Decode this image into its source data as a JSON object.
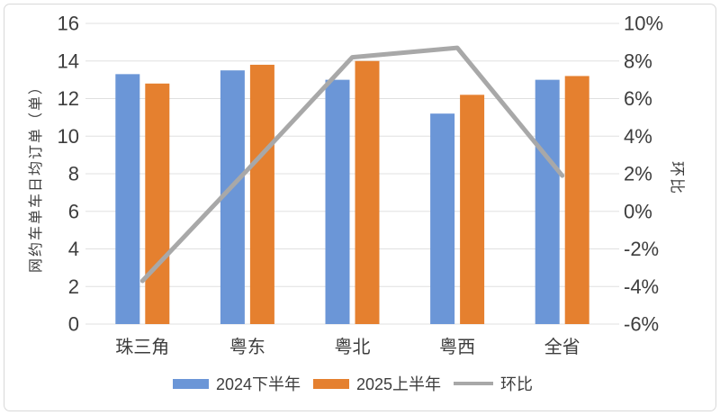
{
  "frame": {
    "background_color": "#ffffff",
    "border_color": "#d9d9d9"
  },
  "colors": {
    "bar_2024": "#6b96d7",
    "bar_2025": "#e5802f",
    "line_huanbi": "#a8a8a8",
    "gridline": "#e0e0e0",
    "text": "#3d3d3d"
  },
  "chart_data": {
    "type": "bar",
    "subtype": "grouped-bar-with-line-combo",
    "categories": [
      "珠三角",
      "粤东",
      "粤北",
      "粤西",
      "全省"
    ],
    "series": [
      {
        "name": "2024下半年",
        "type": "bar",
        "axis": "left",
        "color": "#6b96d7",
        "values": [
          13.3,
          13.5,
          13.0,
          11.2,
          13.0
        ]
      },
      {
        "name": "2025上半年",
        "type": "bar",
        "axis": "left",
        "color": "#e5802f",
        "values": [
          12.8,
          13.8,
          14.0,
          12.2,
          13.2
        ]
      },
      {
        "name": "环比",
        "type": "line",
        "axis": "right",
        "color": "#a8a8a8",
        "values_percent": [
          -3.7,
          2.2,
          8.2,
          8.7,
          1.9
        ]
      }
    ],
    "left_axis": {
      "title": "网约车单车日均订单（单）",
      "min": 0,
      "max": 16,
      "step": 2,
      "tick_labels": [
        "0",
        "2",
        "4",
        "6",
        "8",
        "10",
        "12",
        "14",
        "16"
      ]
    },
    "right_axis": {
      "title": "环比",
      "min": -6,
      "max": 10,
      "step": 2,
      "tick_labels": [
        "-6%",
        "-4%",
        "-2%",
        "0%",
        "2%",
        "4%",
        "6%",
        "8%",
        "10%"
      ]
    },
    "grid": true,
    "legend_position": "bottom",
    "title": ""
  }
}
